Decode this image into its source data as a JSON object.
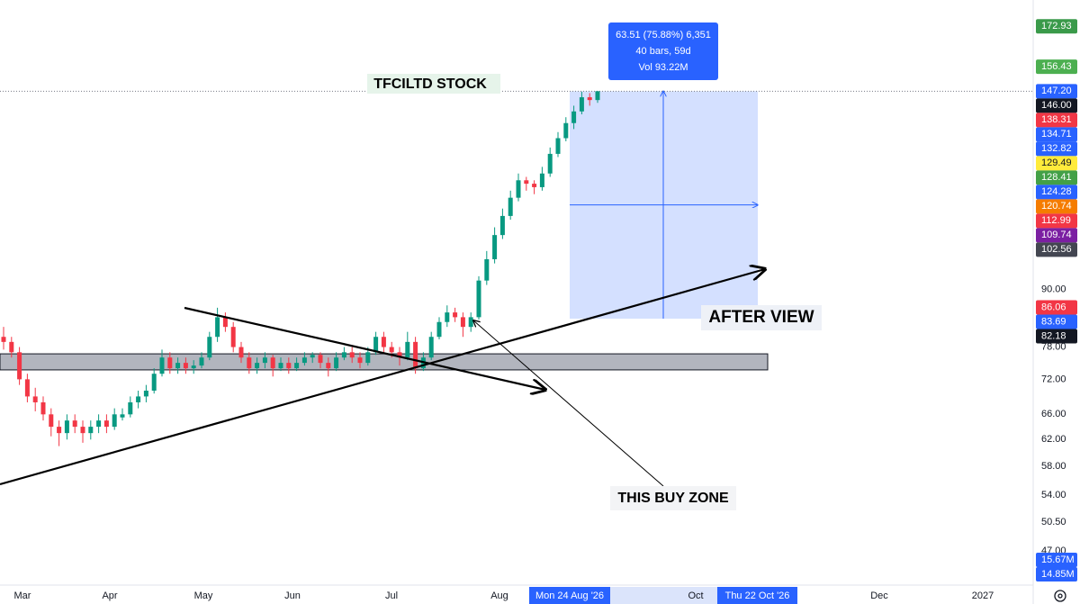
{
  "chart_data": {
    "type": "candlestick",
    "annotations": {
      "title": "TFCILTD STOCK",
      "after": "AFTER VIEW",
      "buy": "THIS BUY ZONE"
    },
    "measure": {
      "line1": "63.51 (75.88%) 6,351",
      "line2": "40 bars, 59d",
      "line3": "Vol 93.22M"
    },
    "log_scale": true,
    "ylim": [
      43.2,
      184.6
    ],
    "yticks": [
      {
        "value": 47,
        "label": "47.00"
      },
      {
        "value": 50.5,
        "label": "50.50"
      },
      {
        "value": 54,
        "label": "54.00"
      },
      {
        "value": 58,
        "label": "58.00"
      },
      {
        "value": 62,
        "label": "62.00"
      },
      {
        "value": 66,
        "label": "66.00"
      },
      {
        "value": 72,
        "label": "72.00"
      },
      {
        "value": 78,
        "label": "78.00"
      },
      {
        "value": 90,
        "label": "90.00"
      }
    ],
    "up_color": "#089981",
    "down_color": "#f23645",
    "support_zone": [
      73.7,
      76.7
    ],
    "price_labels": [
      {
        "value": 172.93,
        "label": "172.93",
        "color": "#3a9a4a"
      },
      {
        "value": 156.43,
        "label": "156.43",
        "color": "#4caf50"
      },
      {
        "value": 147.2,
        "label": "147.20",
        "color": "#2962ff"
      },
      {
        "value": 146,
        "label": "146.00",
        "color": "#131722"
      },
      {
        "value": 138.31,
        "label": "138.31",
        "color": "#f23645"
      },
      {
        "value": 134.71,
        "label": "134.71",
        "color": "#2962ff"
      },
      {
        "value": 132.82,
        "label": "132.82",
        "color": "#2962ff"
      },
      {
        "value": 129.49,
        "label": "129.49",
        "color": "#ffeb3b"
      },
      {
        "value": 128.41,
        "label": "128.41",
        "color": "#43a047"
      },
      {
        "value": 124.28,
        "label": "124.28",
        "color": "#2962ff"
      },
      {
        "value": 120.74,
        "label": "120.74",
        "color": "#f57c00"
      },
      {
        "value": 112.99,
        "label": "112.99",
        "color": "#f23645"
      },
      {
        "value": 109.74,
        "label": "109.74",
        "color": "#7b1fa2"
      },
      {
        "value": 102.56,
        "label": "102.56",
        "color": "#434651"
      },
      {
        "value": 86.06,
        "label": "86.06",
        "color": "#f23645"
      },
      {
        "value": 83.69,
        "label": "83.69",
        "color": "#2962ff"
      },
      {
        "value": 82.18,
        "label": "82.18",
        "color": "#131722"
      }
    ],
    "volume_labels": [
      {
        "value": 15670000,
        "label": "15.67M"
      },
      {
        "value": 14850000,
        "label": "14.85M"
      }
    ],
    "x_labels": [
      "Mar",
      "Apr",
      "May",
      "Jun",
      "Jul",
      "Aug",
      "Oct",
      "Dec",
      "2027"
    ],
    "x_markers": [
      "Mon 24 Aug '26",
      "Thu 22 Oct '26"
    ],
    "candles": [
      [
        80,
        82,
        77.5,
        79
      ],
      [
        79,
        80,
        76,
        77
      ],
      [
        77,
        78,
        71,
        72
      ],
      [
        72,
        73,
        68,
        69
      ],
      [
        69,
        70.5,
        66.5,
        68
      ],
      [
        68,
        69,
        65,
        66
      ],
      [
        66,
        67,
        62.5,
        64
      ],
      [
        64,
        65,
        61,
        63
      ],
      [
        63,
        66,
        62,
        65
      ],
      [
        65,
        66,
        63,
        64
      ],
      [
        64,
        65,
        61.5,
        63
      ],
      [
        63,
        65,
        62,
        64
      ],
      [
        64,
        66,
        63,
        65
      ],
      [
        65,
        66,
        63,
        64
      ],
      [
        64,
        67,
        63.5,
        66
      ],
      [
        65.5,
        67,
        65,
        66
      ],
      [
        66,
        69,
        65.5,
        68
      ],
      [
        68,
        70,
        67,
        69
      ],
      [
        69,
        71,
        68,
        70
      ],
      [
        70,
        74,
        69.5,
        73
      ],
      [
        73,
        77.5,
        72.5,
        76
      ],
      [
        76,
        77,
        73,
        74
      ],
      [
        74,
        76,
        73,
        75
      ],
      [
        75,
        76,
        73,
        74
      ],
      [
        74,
        75.5,
        73,
        74.5
      ],
      [
        74.5,
        77,
        74,
        76
      ],
      [
        76,
        81,
        75.5,
        80
      ],
      [
        80,
        86,
        79,
        84
      ],
      [
        84,
        85,
        81,
        82
      ],
      [
        82,
        83,
        77,
        78
      ],
      [
        78,
        79,
        75,
        76
      ],
      [
        76,
        77,
        73,
        74
      ],
      [
        74,
        76,
        73,
        75
      ],
      [
        75,
        77,
        74,
        76
      ],
      [
        76,
        76.5,
        72.5,
        74
      ],
      [
        74,
        76,
        73.5,
        75
      ],
      [
        75,
        76,
        73,
        74
      ],
      [
        74,
        76,
        73.5,
        75
      ],
      [
        75,
        77,
        74.5,
        76
      ],
      [
        76,
        77,
        75,
        76.5
      ],
      [
        76.5,
        77,
        74,
        75
      ],
      [
        75,
        76,
        72.5,
        74
      ],
      [
        74,
        77,
        73.5,
        76
      ],
      [
        76,
        78,
        75.5,
        77
      ],
      [
        77,
        78,
        75,
        76
      ],
      [
        76,
        77,
        74,
        75
      ],
      [
        75,
        78,
        74.5,
        77
      ],
      [
        77,
        81,
        76.5,
        80
      ],
      [
        80,
        81,
        77,
        78
      ],
      [
        78,
        79,
        76,
        77
      ],
      [
        77,
        78,
        74.5,
        76
      ],
      [
        76,
        81,
        75.5,
        79
      ],
      [
        79,
        80,
        73,
        74
      ],
      [
        74,
        77,
        73.5,
        76
      ],
      [
        76,
        81,
        75.5,
        80
      ],
      [
        80,
        84,
        79.5,
        83
      ],
      [
        83,
        86.5,
        82,
        85
      ],
      [
        85,
        86,
        83,
        84
      ],
      [
        84,
        85,
        80,
        82
      ],
      [
        82,
        85,
        81,
        84
      ],
      [
        84,
        93,
        83.5,
        92
      ],
      [
        92,
        99,
        91,
        97
      ],
      [
        97,
        105,
        96,
        103
      ],
      [
        103,
        110,
        102,
        108
      ],
      [
        108,
        115,
        107,
        113
      ],
      [
        113,
        120,
        112,
        118
      ],
      [
        118,
        119,
        115,
        117
      ],
      [
        117,
        118,
        114,
        116
      ],
      [
        116,
        122,
        115,
        120
      ],
      [
        120,
        128,
        119,
        126
      ],
      [
        126,
        133,
        125,
        131
      ],
      [
        131,
        138,
        130,
        136
      ],
      [
        136,
        142,
        134,
        140
      ],
      [
        140,
        147,
        139,
        145
      ],
      [
        145,
        146.5,
        142,
        144
      ],
      [
        144,
        147.2,
        143,
        147.2
      ]
    ]
  }
}
